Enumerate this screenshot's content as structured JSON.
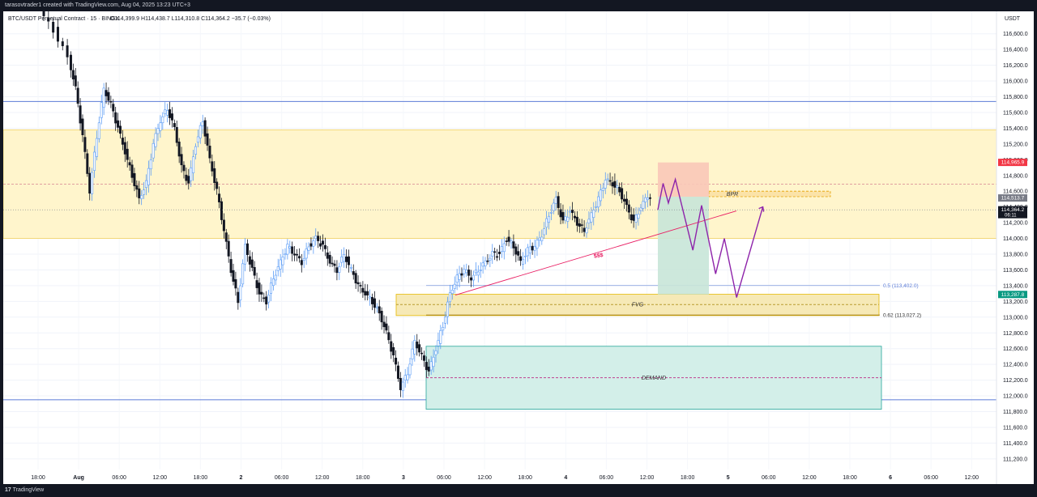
{
  "header": {
    "credit": "tarasovtrader1 created with TradingView.com, Aug 04, 2025 13:23 UTC+3",
    "symbol": "BTC/USDT Perpetual Contract · 15 · BINGX",
    "ohlc": "O114,399.9  H114,438.7  L114,310.8  C114,364.2  −35.7 (−0.03%)"
  },
  "footer": {
    "brand": "TradingView",
    "logo": "17"
  },
  "colors": {
    "up": "#5b9cf6",
    "down": "#131722",
    "zone_yellow": "#fff5cc",
    "zone_demand": "#d3efe9",
    "blue_line": "#5b7bd6",
    "red_box": "#f9c8b8",
    "green_box": "#c8e6d8",
    "purple": "#9c27b0",
    "pink": "#e91e63"
  },
  "chart_data": {
    "type": "candlestick",
    "currency": "USDT",
    "ylim": [
      111100,
      116900
    ],
    "y_ticks": [
      116600,
      116400,
      116200,
      116000,
      115800,
      115600,
      115400,
      115200,
      115000,
      114800,
      114600,
      114400,
      114200,
      114000,
      113800,
      113600,
      113400,
      113200,
      113000,
      112800,
      112600,
      112400,
      112200,
      112000,
      111800,
      111600,
      111400,
      111200
    ],
    "x_labels": [
      "18:00",
      "Aug",
      "06:00",
      "12:00",
      "18:00",
      "2",
      "06:00",
      "12:00",
      "18:00",
      "3",
      "06:00",
      "12:00",
      "18:00",
      "4",
      "06:00",
      "12:00",
      "18:00",
      "5",
      "06:00",
      "12:00",
      "18:00",
      "6",
      "06:00",
      "12:00"
    ],
    "price_path": [
      [
        -4,
        116900
      ],
      [
        -2,
        116650
      ],
      [
        0,
        116300
      ],
      [
        1,
        115900
      ],
      [
        2,
        115300
      ],
      [
        3,
        114600
      ],
      [
        4,
        115300
      ],
      [
        5,
        115900
      ],
      [
        6,
        115700
      ],
      [
        7,
        115400
      ],
      [
        8,
        115100
      ],
      [
        9,
        114800
      ],
      [
        10,
        114500
      ],
      [
        11,
        114700
      ],
      [
        12,
        115200
      ],
      [
        13,
        115500
      ],
      [
        14,
        115650
      ],
      [
        15,
        115400
      ],
      [
        16,
        114900
      ],
      [
        17,
        114700
      ],
      [
        18,
        115200
      ],
      [
        19,
        115500
      ],
      [
        20,
        115000
      ],
      [
        21,
        114600
      ],
      [
        22,
        114100
      ],
      [
        23,
        113600
      ],
      [
        24,
        113200
      ],
      [
        25,
        113900
      ],
      [
        26,
        113600
      ],
      [
        27,
        113300
      ],
      [
        28,
        113200
      ],
      [
        29,
        113500
      ],
      [
        30,
        113700
      ],
      [
        31,
        113900
      ],
      [
        32,
        113800
      ],
      [
        33,
        113700
      ],
      [
        34,
        113900
      ],
      [
        35,
        114000
      ],
      [
        36,
        113900
      ],
      [
        37,
        113700
      ],
      [
        38,
        113600
      ],
      [
        39,
        113800
      ],
      [
        40,
        113600
      ],
      [
        41,
        113400
      ],
      [
        42,
        113300
      ],
      [
        43,
        113200
      ],
      [
        44,
        113050
      ],
      [
        45,
        112800
      ],
      [
        46,
        112500
      ],
      [
        47,
        112100
      ],
      [
        48,
        112300
      ],
      [
        49,
        112700
      ],
      [
        50,
        112500
      ],
      [
        51,
        112300
      ],
      [
        52,
        112600
      ],
      [
        53,
        112900
      ],
      [
        54,
        113300
      ],
      [
        55,
        113500
      ],
      [
        56,
        113600
      ],
      [
        57,
        113500
      ],
      [
        58,
        113600
      ],
      [
        59,
        113700
      ],
      [
        60,
        113800
      ],
      [
        61,
        113800
      ],
      [
        62,
        114000
      ],
      [
        63,
        113900
      ],
      [
        64,
        113700
      ],
      [
        65,
        113850
      ],
      [
        66,
        113900
      ],
      [
        67,
        114050
      ],
      [
        68,
        114300
      ],
      [
        69,
        114500
      ],
      [
        70,
        114200
      ],
      [
        71,
        114350
      ],
      [
        72,
        114200
      ],
      [
        73,
        114100
      ],
      [
        74,
        114300
      ],
      [
        75,
        114500
      ],
      [
        76,
        114750
      ],
      [
        77,
        114700
      ],
      [
        78,
        114600
      ],
      [
        79,
        114400
      ],
      [
        80,
        114200
      ],
      [
        81,
        114400
      ],
      [
        82,
        114550
      ],
      [
        83,
        114500
      ],
      [
        84,
        114364
      ]
    ],
    "annotations": [
      {
        "type": "hline",
        "label": "",
        "y": 115740
      },
      {
        "type": "hline",
        "label": "",
        "y": 111950
      },
      {
        "type": "zone",
        "label": "",
        "y": [
          114000,
          115380
        ]
      },
      {
        "type": "zone",
        "label": "FVG",
        "y": [
          113020,
          113290
        ]
      },
      {
        "type": "zone",
        "label": "DEMAND",
        "y": [
          111830,
          112630
        ]
      },
      {
        "type": "zone",
        "label": "BPR",
        "y": [
          114530,
          114600
        ]
      },
      {
        "type": "fib",
        "label": "0.5 (113,402.0)",
        "y": 113402
      },
      {
        "type": "fib",
        "label": "0.62 (113,027.2)",
        "y": 113027.2
      },
      {
        "type": "liquidity",
        "label": "$$$"
      }
    ],
    "price_badges": [
      {
        "label": "114,965.9",
        "y": 114966,
        "color": "#f23645"
      },
      {
        "label": "114,513.7",
        "y": 114514,
        "color": "#787b86"
      },
      {
        "label": "114,364.2",
        "sub": "06:11",
        "y": 114364,
        "color": "#131722"
      },
      {
        "label": "113,287.8",
        "y": 113288,
        "color": "#089981"
      }
    ],
    "projection": [
      [
        0,
        114364
      ],
      [
        0.03,
        114700
      ],
      [
        0.06,
        114450
      ],
      [
        0.1,
        114750
      ],
      [
        0.15,
        114300
      ],
      [
        0.2,
        113850
      ],
      [
        0.25,
        114420
      ],
      [
        0.33,
        113550
      ],
      [
        0.38,
        114000
      ],
      [
        0.45,
        113250
      ],
      [
        0.6,
        114400
      ]
    ]
  }
}
